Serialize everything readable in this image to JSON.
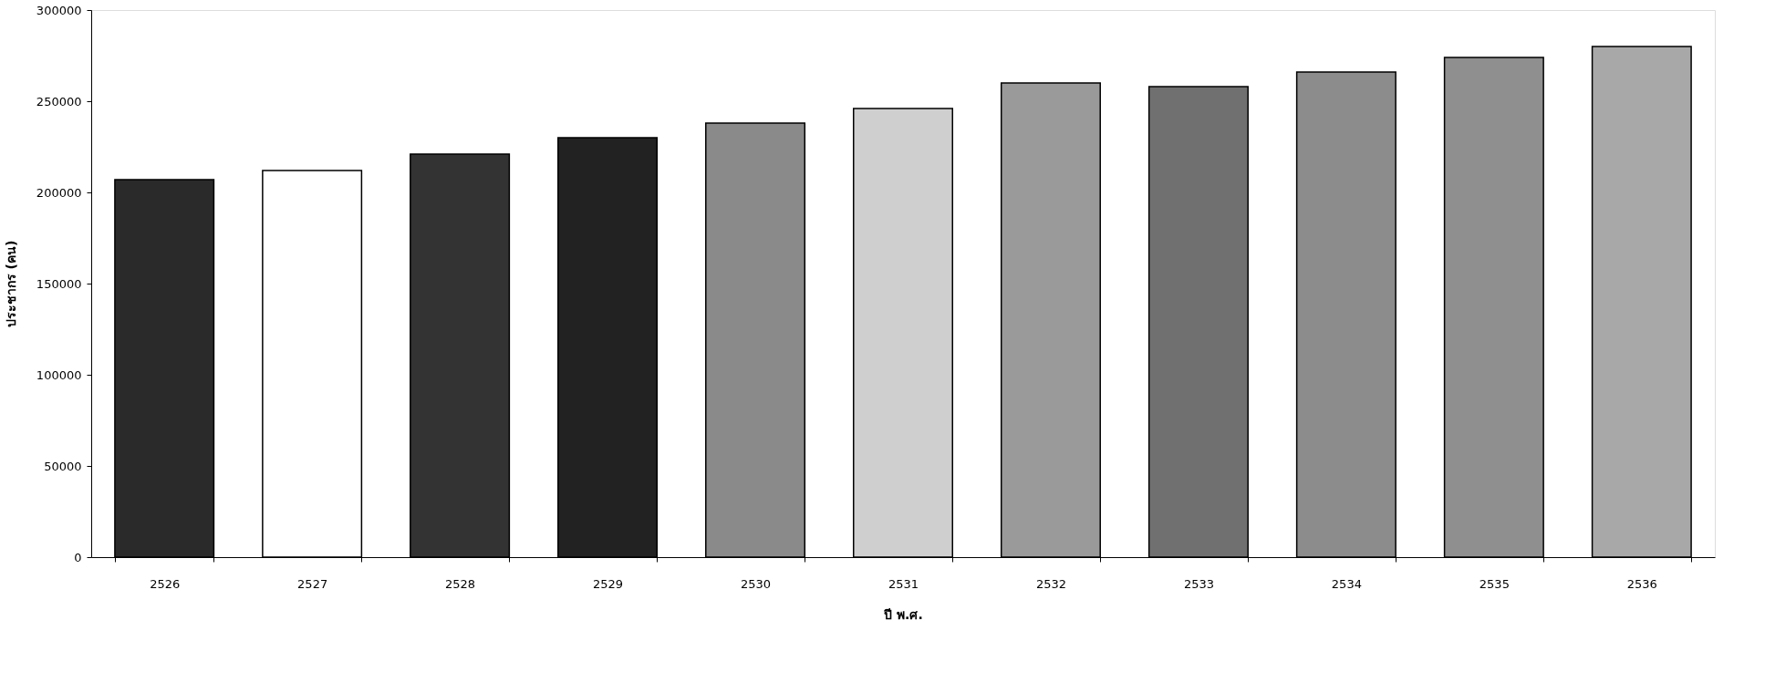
{
  "chart_data": {
    "type": "bar",
    "xlabel": "ปี พ.ศ.",
    "ylabel": "ประชากร (คน)",
    "categories": [
      "2526",
      "2527",
      "2528",
      "2529",
      "2530",
      "2531",
      "2532",
      "2533",
      "2534",
      "2535",
      "2536"
    ],
    "values": [
      207000,
      212000,
      221000,
      230000,
      238000,
      246000,
      260000,
      258000,
      266000,
      274000,
      280000
    ],
    "colors": [
      "#2a2a2a",
      "#ffffff",
      "#333333",
      "#222222",
      "#8a8a8a",
      "#cfcfcf",
      "#9a9a9a",
      "#707070",
      "#8c8c8c",
      "#8f8f8f",
      "#a8a8a8"
    ],
    "ylim": [
      0,
      300000
    ],
    "yticks": [
      0,
      50000,
      100000,
      150000,
      200000,
      250000,
      300000
    ],
    "grid": false
  }
}
